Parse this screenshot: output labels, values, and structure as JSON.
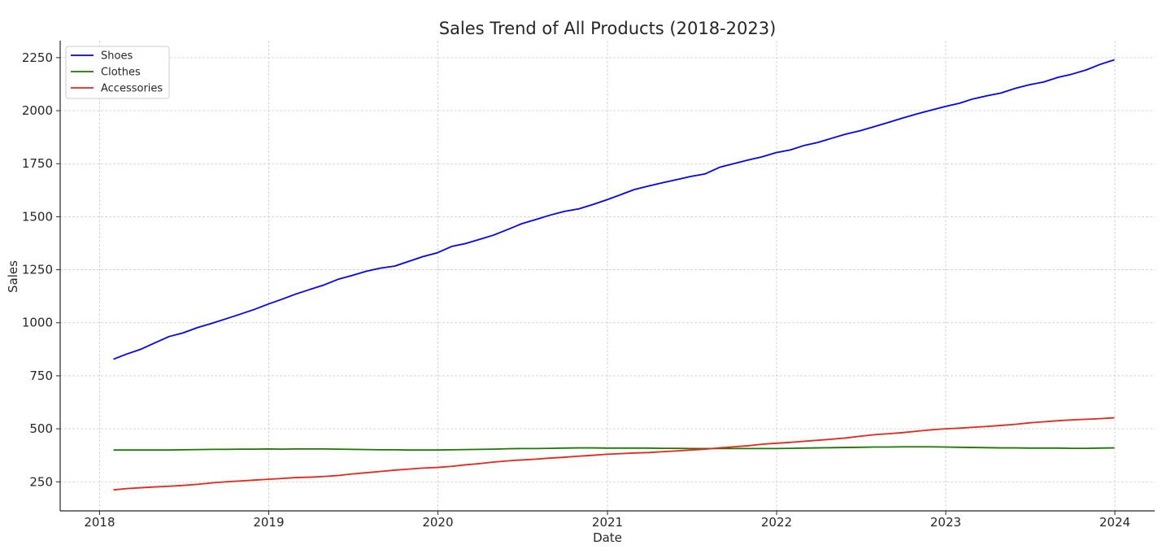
{
  "chart_data": {
    "type": "line",
    "title": "Sales Trend of All Products (2018-2023)",
    "xlabel": "Date",
    "ylabel": "Sales",
    "xlim": [
      "2017-10-08",
      "2024-03-27"
    ],
    "ylim": [
      113,
      2330
    ],
    "x_ticks": [
      "2018",
      "2019",
      "2020",
      "2021",
      "2022",
      "2023",
      "2024"
    ],
    "y_ticks": [
      250,
      500,
      750,
      1000,
      1250,
      1500,
      1750,
      2000,
      2250
    ],
    "grid": true,
    "legend_position": "top-left",
    "x": [
      "2018-01-31",
      "2018-02-28",
      "2018-03-31",
      "2018-04-30",
      "2018-05-31",
      "2018-06-30",
      "2018-07-31",
      "2018-08-31",
      "2018-09-30",
      "2018-10-31",
      "2018-11-30",
      "2018-12-31",
      "2019-01-31",
      "2019-02-28",
      "2019-03-31",
      "2019-04-30",
      "2019-05-31",
      "2019-06-30",
      "2019-07-31",
      "2019-08-31",
      "2019-09-30",
      "2019-10-31",
      "2019-11-30",
      "2019-12-31",
      "2020-01-31",
      "2020-02-29",
      "2020-03-31",
      "2020-04-30",
      "2020-05-31",
      "2020-06-30",
      "2020-07-31",
      "2020-08-31",
      "2020-09-30",
      "2020-10-31",
      "2020-11-30",
      "2020-12-31",
      "2021-01-31",
      "2021-02-28",
      "2021-03-31",
      "2021-04-30",
      "2021-05-31",
      "2021-06-30",
      "2021-07-31",
      "2021-08-31",
      "2021-09-30",
      "2021-10-31",
      "2021-11-30",
      "2021-12-31",
      "2022-01-31",
      "2022-02-28",
      "2022-03-31",
      "2022-04-30",
      "2022-05-31",
      "2022-06-30",
      "2022-07-31",
      "2022-08-31",
      "2022-09-30",
      "2022-10-31",
      "2022-11-30",
      "2022-12-31",
      "2023-01-31",
      "2023-02-28",
      "2023-03-31",
      "2023-04-30",
      "2023-05-31",
      "2023-06-30",
      "2023-07-31",
      "2023-08-31",
      "2023-09-30",
      "2023-10-31",
      "2023-11-30",
      "2023-12-31"
    ],
    "series": [
      {
        "name": "Shoes",
        "color": "#0000ff",
        "values": [
          828,
          852,
          875,
          905,
          935,
          952,
          977,
          997,
          1018,
          1040,
          1062,
          1088,
          1112,
          1135,
          1157,
          1178,
          1205,
          1223,
          1243,
          1258,
          1267,
          1290,
          1312,
          1330,
          1360,
          1373,
          1393,
          1413,
          1440,
          1467,
          1487,
          1508,
          1525,
          1537,
          1557,
          1580,
          1605,
          1628,
          1645,
          1660,
          1675,
          1690,
          1702,
          1733,
          1750,
          1767,
          1782,
          1802,
          1815,
          1835,
          1850,
          1870,
          1890,
          1905,
          1925,
          1945,
          1965,
          1985,
          2002,
          2020,
          2035,
          2055,
          2070,
          2083,
          2105,
          2122,
          2135,
          2157,
          2172,
          2192,
          2218,
          2240
        ]
      },
      {
        "name": "Clothes",
        "color": "#1a7a00",
        "values": [
          400,
          400,
          400,
          400,
          400,
          401,
          402,
          403,
          403,
          404,
          404,
          405,
          404,
          405,
          405,
          405,
          404,
          403,
          402,
          401,
          401,
          400,
          400,
          400,
          401,
          402,
          403,
          404,
          406,
          407,
          407,
          408,
          409,
          410,
          410,
          409,
          409,
          409,
          409,
          408,
          408,
          407,
          407,
          407,
          407,
          407,
          407,
          407,
          408,
          409,
          410,
          411,
          412,
          413,
          414,
          414,
          415,
          415,
          415,
          414,
          413,
          412,
          411,
          410,
          410,
          409,
          409,
          409,
          408,
          408,
          409,
          410
        ]
      },
      {
        "name": "Accessories",
        "color": "#e8261a",
        "values": [
          212,
          218,
          222,
          226,
          229,
          233,
          238,
          245,
          250,
          254,
          258,
          262,
          266,
          270,
          272,
          275,
          280,
          287,
          293,
          299,
          305,
          310,
          315,
          318,
          323,
          330,
          336,
          343,
          349,
          353,
          357,
          362,
          366,
          371,
          375,
          380,
          383,
          386,
          388,
          392,
          396,
          400,
          404,
          410,
          415,
          420,
          427,
          432,
          436,
          441,
          446,
          451,
          457,
          465,
          472,
          477,
          482,
          489,
          495,
          500,
          503,
          507,
          511,
          516,
          521,
          528,
          533,
          538,
          542,
          545,
          548,
          552
        ]
      }
    ]
  }
}
